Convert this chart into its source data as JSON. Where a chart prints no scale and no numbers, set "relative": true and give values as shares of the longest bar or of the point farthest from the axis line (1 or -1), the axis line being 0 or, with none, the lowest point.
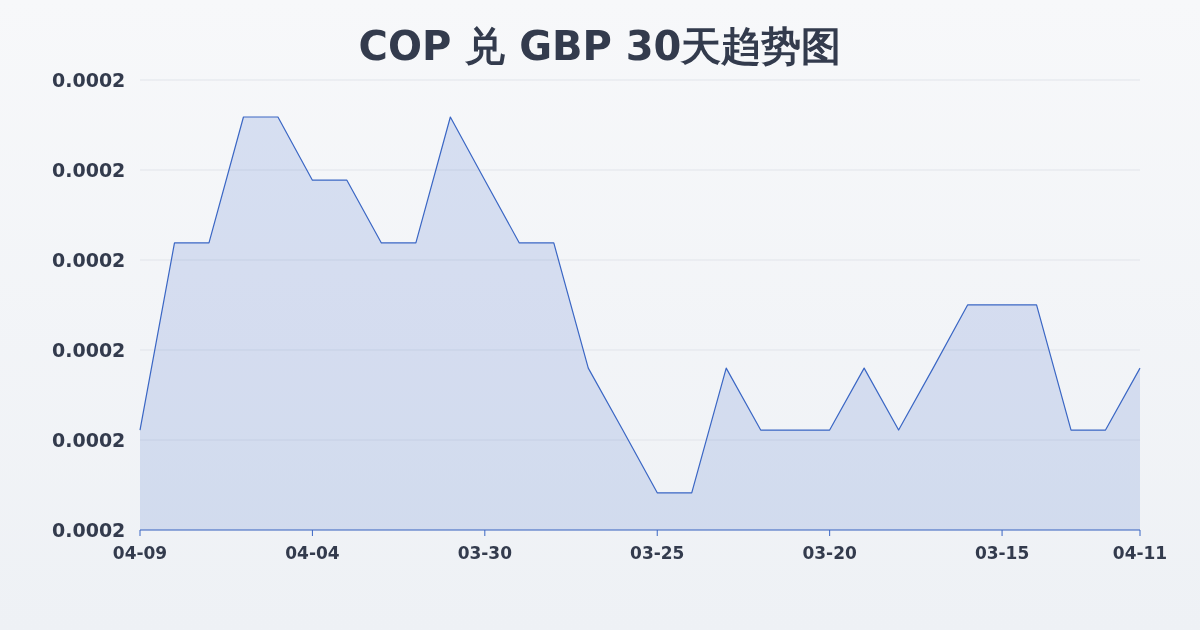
{
  "chart_data": {
    "type": "area",
    "title": "COP 兑 GBP 30天趋势图",
    "categories": [
      "04-09",
      null,
      null,
      null,
      null,
      "04-04",
      null,
      null,
      null,
      null,
      "03-30",
      null,
      null,
      null,
      null,
      "03-25",
      null,
      null,
      null,
      null,
      "03-20",
      null,
      null,
      null,
      null,
      "03-15",
      null,
      null,
      null,
      "04-11"
    ],
    "values": [
      0.242,
      0.695,
      0.695,
      1,
      1,
      0.847,
      0.847,
      0.695,
      0.695,
      1,
      0.847,
      0.695,
      0.695,
      0.392,
      0.242,
      0.09,
      0.09,
      0.392,
      0.242,
      0.242,
      0.242,
      0.392,
      0.242,
      0.392,
      0.545,
      0.545,
      0.545,
      0.242,
      0.242,
      0.392
    ],
    "color": "#3a66c4",
    "relative": true,
    "annotations": [
      "0.0002",
      "0.0002",
      "0.0002",
      "0.0002",
      "0.0002",
      "0.0002"
    ],
    "grid": "y"
  }
}
